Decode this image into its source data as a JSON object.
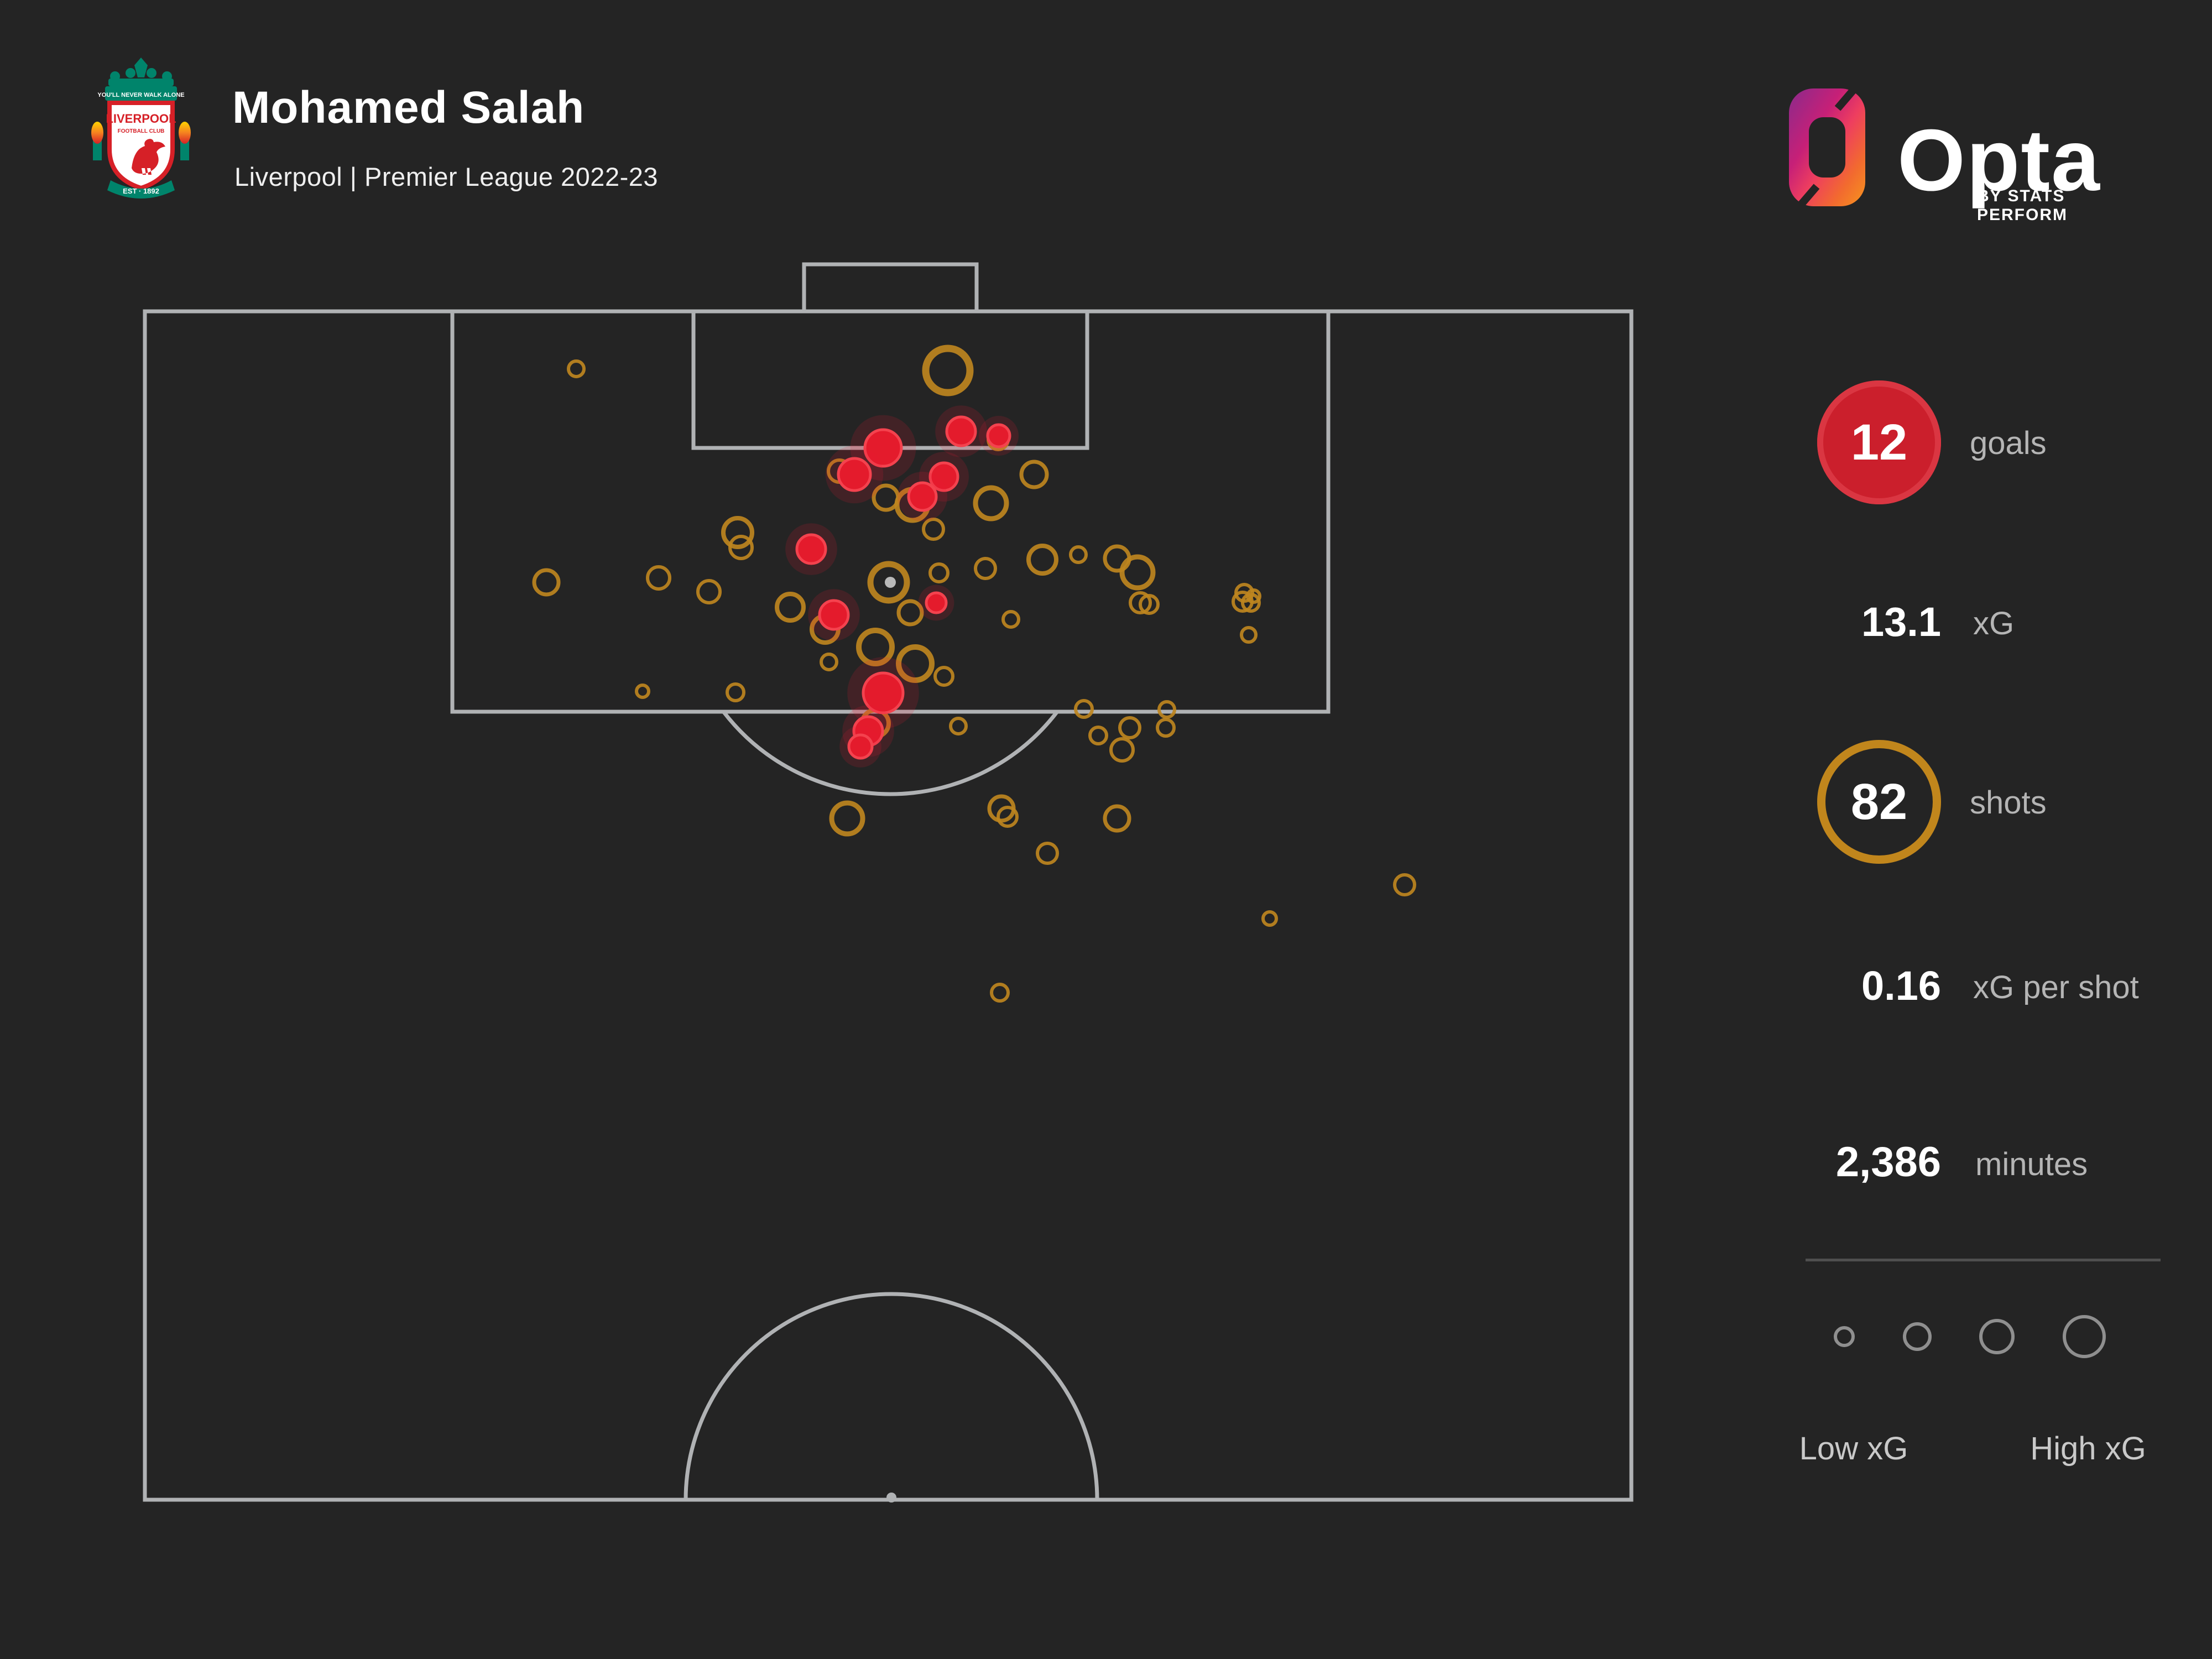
{
  "header": {
    "title": "Mohamed Salah",
    "subtitle": "Liverpool | Premier League 2022-23",
    "crest": {
      "motto": "YOU'LL NEVER WALK ALONE",
      "club_line1": "LIVERPOOL",
      "club_line2": "FOOTBALL CLUB",
      "established": "EST · 1892"
    }
  },
  "brand": {
    "name": "Opta",
    "byline": "BY STATS PERFORM"
  },
  "stats": {
    "goals": {
      "value": "12",
      "label": "goals"
    },
    "xg": {
      "value": "13.1",
      "label": "xG"
    },
    "shots": {
      "value": "82",
      "label": "shots"
    },
    "xg_per_shot": {
      "value": "0.16",
      "label": "xG per shot"
    },
    "minutes": {
      "value": "2,386",
      "label": "minutes"
    }
  },
  "legend": {
    "low_label": "Low xG",
    "high_label": "High xG",
    "circle_diameters": [
      26,
      40,
      52,
      66
    ]
  },
  "colors": {
    "background": "#242424",
    "pitch_line": "#B0B2B4",
    "shot_ring": "#BE861F",
    "goal_fill": "#E41B2C",
    "goal_rim": "#F4424E",
    "goal_glow": "rgba(235,25,55,0.28)",
    "penalty_spot": "#B9B9B9",
    "value_text": "#FFFFFF",
    "label_text": "#B5B5B5",
    "legend_ring": "#8F8F8F",
    "badge_red": "#CB1F2C",
    "badge_gold": "#C1861C",
    "liverpool_green": "#00846B",
    "liverpool_red": "#D62027",
    "opta_gradient": [
      "#8A2A8C",
      "#C72077",
      "#EE3E5F",
      "#F7951D"
    ]
  },
  "chart_data": {
    "type": "scatter",
    "title": "Mohamed Salah shot map, Premier League 2022-23",
    "coordinate_space": "page pixels on a 4000x3000 canvas, attacking goal at top of half-pitch",
    "marker_encoding": "circle radius encodes xG of the shot (Low xG small, High xG large); red filled circle = goal (12), gold ring = non-goal shot; total shots 82 (overlapping markers)",
    "pitch": {
      "boundary": [
        262,
        563,
        2950,
        2712
      ],
      "penalty_box": [
        818,
        563,
        2402,
        1287
      ],
      "six_yard_box": [
        1254,
        563,
        1966,
        810
      ],
      "goal_frame": [
        1454,
        478,
        1766,
        563
      ],
      "penalty_spot": [
        1610,
        1053
      ],
      "penalty_arc": {
        "cx": 1610,
        "cy": 1056,
        "r": 380,
        "clip_below_y": 1287
      },
      "center_circle": {
        "cx": 1612,
        "cy": 2712,
        "r": 372
      },
      "halfway_line_y": 2712
    },
    "series": [
      {
        "name": "goals",
        "marker": "red-filled",
        "points": [
          [
            1597,
            810,
            33
          ],
          [
            1738,
            780,
            26
          ],
          [
            1806,
            788,
            20
          ],
          [
            1545,
            858,
            29
          ],
          [
            1707,
            862,
            25
          ],
          [
            1668,
            898,
            25
          ],
          [
            1467,
            993,
            26
          ],
          [
            1508,
            1112,
            26
          ],
          [
            1693,
            1090,
            18
          ],
          [
            1597,
            1253,
            36
          ],
          [
            1570,
            1322,
            26
          ],
          [
            1556,
            1350,
            21
          ]
        ]
      },
      {
        "name": "non-goal shots",
        "marker": "gold-ring",
        "points": [
          [
            1042,
            667,
            14
          ],
          [
            1714,
            670,
            40
          ],
          [
            988,
            1053,
            22
          ],
          [
            1191,
            1045,
            20
          ],
          [
            1282,
            1070,
            20
          ],
          [
            1429,
            1098,
            24
          ],
          [
            1334,
            963,
            26
          ],
          [
            1340,
            990,
            20
          ],
          [
            1518,
            852,
            20
          ],
          [
            1602,
            900,
            22
          ],
          [
            1650,
            913,
            28
          ],
          [
            1688,
            957,
            18
          ],
          [
            1792,
            910,
            28
          ],
          [
            1870,
            858,
            23
          ],
          [
            1805,
            795,
            18
          ],
          [
            1885,
            1012,
            25
          ],
          [
            1950,
            1003,
            14
          ],
          [
            2020,
            1010,
            22
          ],
          [
            2057,
            1035,
            28
          ],
          [
            1698,
            1036,
            16
          ],
          [
            1646,
            1108,
            21
          ],
          [
            1828,
            1120,
            14
          ],
          [
            1492,
            1138,
            24
          ],
          [
            1583,
            1170,
            30
          ],
          [
            1499,
            1197,
            14
          ],
          [
            1162,
            1250,
            11
          ],
          [
            1330,
            1252,
            15
          ],
          [
            1655,
            1200,
            30
          ],
          [
            1707,
            1223,
            16
          ],
          [
            1733,
            1313,
            14
          ],
          [
            1583,
            1308,
            24
          ],
          [
            1561,
            1338,
            12
          ],
          [
            1532,
            1480,
            28
          ],
          [
            1811,
            1462,
            22
          ],
          [
            1822,
            1477,
            17
          ],
          [
            1894,
            1543,
            18
          ],
          [
            2020,
            1480,
            22
          ],
          [
            1960,
            1282,
            15
          ],
          [
            1986,
            1330,
            15
          ],
          [
            2043,
            1316,
            18
          ],
          [
            2029,
            1356,
            20
          ],
          [
            2108,
            1316,
            15
          ],
          [
            2110,
            1283,
            14
          ],
          [
            2062,
            1090,
            18
          ],
          [
            2078,
            1093,
            16
          ],
          [
            2250,
            1072,
            15
          ],
          [
            2247,
            1088,
            17
          ],
          [
            2262,
            1090,
            15
          ],
          [
            2267,
            1078,
            11
          ],
          [
            2258,
            1148,
            13
          ],
          [
            2296,
            1661,
            12
          ],
          [
            2540,
            1600,
            18
          ],
          [
            1808,
            1795,
            15
          ],
          [
            1782,
            1028,
            18
          ],
          [
            1607,
            1053,
            33
          ]
        ]
      }
    ]
  }
}
